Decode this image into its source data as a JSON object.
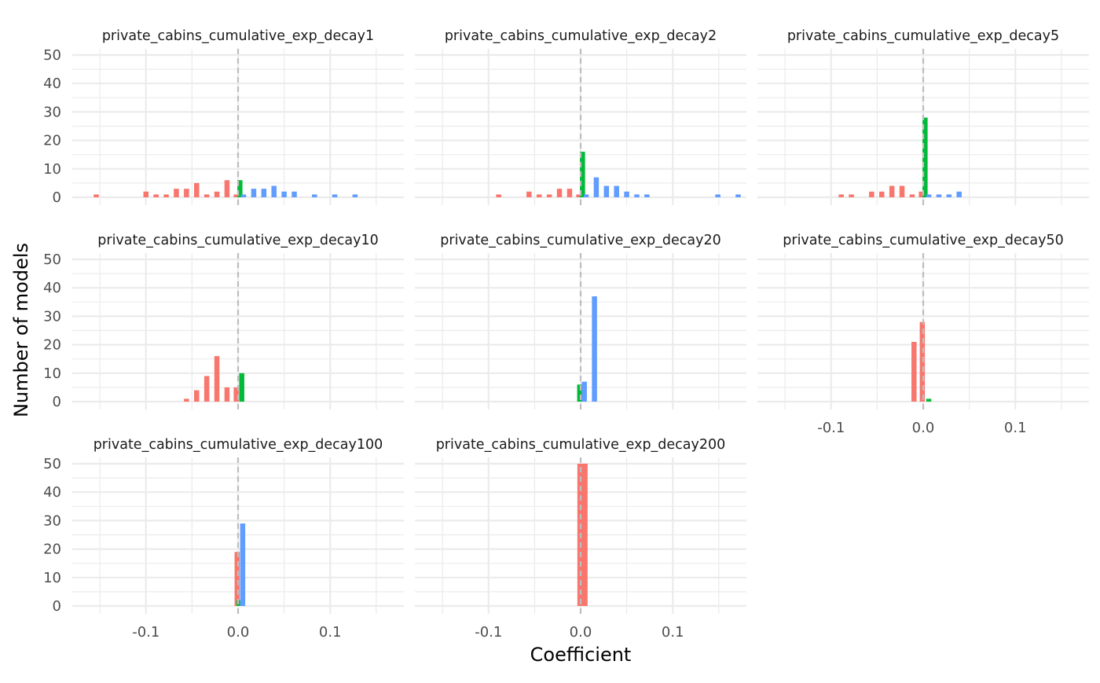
{
  "chart_data": {
    "type": "bar",
    "xlabel": "Coefficient",
    "ylabel": "Number of models",
    "xlim": [
      -0.18,
      0.18
    ],
    "ylim": [
      0,
      50
    ],
    "x_ticks": [
      -0.1,
      0.0,
      0.1
    ],
    "x_tick_labels": [
      "-0.1",
      "0.0",
      "0.1"
    ],
    "y_ticks": [
      0,
      10,
      20,
      30,
      40,
      50
    ],
    "y_tick_labels": [
      "0",
      "10",
      "20",
      "30",
      "40",
      "50"
    ],
    "reference_line_x": 0,
    "grid": true,
    "legend": "none",
    "colors": {
      "negative": "#f8766d",
      "zero": "#00ba38",
      "positive": "#619cff",
      "reference": "#bebebe",
      "grid": "#ebebeb"
    },
    "panels": [
      {
        "title": "private_cabins_cumulative_exp_decay1",
        "bars": [
          {
            "x": -0.154,
            "count": 1,
            "group": "negative"
          },
          {
            "x": -0.1,
            "count": 2,
            "group": "negative"
          },
          {
            "x": -0.089,
            "count": 1,
            "group": "negative"
          },
          {
            "x": -0.078,
            "count": 1,
            "group": "negative"
          },
          {
            "x": -0.067,
            "count": 3,
            "group": "negative"
          },
          {
            "x": -0.056,
            "count": 3,
            "group": "negative"
          },
          {
            "x": -0.045,
            "count": 5,
            "group": "negative"
          },
          {
            "x": -0.034,
            "count": 1,
            "group": "negative"
          },
          {
            "x": -0.023,
            "count": 2,
            "group": "negative"
          },
          {
            "x": -0.012,
            "count": 6,
            "group": "negative"
          },
          {
            "x": -0.002,
            "count": 1,
            "group": "negative"
          },
          {
            "x": 0.002,
            "count": 6,
            "group": "zero"
          },
          {
            "x": 0.006,
            "count": 1,
            "group": "positive"
          },
          {
            "x": 0.017,
            "count": 3,
            "group": "positive"
          },
          {
            "x": 0.028,
            "count": 3,
            "group": "positive"
          },
          {
            "x": 0.039,
            "count": 4,
            "group": "positive"
          },
          {
            "x": 0.05,
            "count": 2,
            "group": "positive"
          },
          {
            "x": 0.061,
            "count": 2,
            "group": "positive"
          },
          {
            "x": 0.083,
            "count": 1,
            "group": "positive"
          },
          {
            "x": 0.105,
            "count": 1,
            "group": "positive"
          },
          {
            "x": 0.127,
            "count": 1,
            "group": "positive"
          }
        ]
      },
      {
        "title": "private_cabins_cumulative_exp_decay2",
        "bars": [
          {
            "x": -0.089,
            "count": 1,
            "group": "negative"
          },
          {
            "x": -0.056,
            "count": 2,
            "group": "negative"
          },
          {
            "x": -0.045,
            "count": 1,
            "group": "negative"
          },
          {
            "x": -0.034,
            "count": 1,
            "group": "negative"
          },
          {
            "x": -0.023,
            "count": 3,
            "group": "negative"
          },
          {
            "x": -0.012,
            "count": 3,
            "group": "negative"
          },
          {
            "x": -0.002,
            "count": 1,
            "group": "negative"
          },
          {
            "x": 0.002,
            "count": 16,
            "group": "zero"
          },
          {
            "x": 0.006,
            "count": 1,
            "group": "positive"
          },
          {
            "x": 0.017,
            "count": 7,
            "group": "positive"
          },
          {
            "x": 0.028,
            "count": 4,
            "group": "positive"
          },
          {
            "x": 0.039,
            "count": 4,
            "group": "positive"
          },
          {
            "x": 0.05,
            "count": 2,
            "group": "positive"
          },
          {
            "x": 0.061,
            "count": 1,
            "group": "positive"
          },
          {
            "x": 0.072,
            "count": 1,
            "group": "positive"
          },
          {
            "x": 0.149,
            "count": 1,
            "group": "positive"
          },
          {
            "x": 0.171,
            "count": 1,
            "group": "positive"
          }
        ]
      },
      {
        "title": "private_cabins_cumulative_exp_decay5",
        "bars": [
          {
            "x": -0.089,
            "count": 1,
            "group": "negative"
          },
          {
            "x": -0.078,
            "count": 1,
            "group": "negative"
          },
          {
            "x": -0.056,
            "count": 2,
            "group": "negative"
          },
          {
            "x": -0.045,
            "count": 2,
            "group": "negative"
          },
          {
            "x": -0.034,
            "count": 4,
            "group": "negative"
          },
          {
            "x": -0.023,
            "count": 4,
            "group": "negative"
          },
          {
            "x": -0.012,
            "count": 1,
            "group": "negative"
          },
          {
            "x": -0.002,
            "count": 2,
            "group": "negative"
          },
          {
            "x": 0.002,
            "count": 28,
            "group": "zero"
          },
          {
            "x": 0.006,
            "count": 1,
            "group": "positive"
          },
          {
            "x": 0.017,
            "count": 1,
            "group": "positive"
          },
          {
            "x": 0.028,
            "count": 1,
            "group": "positive"
          },
          {
            "x": 0.039,
            "count": 2,
            "group": "positive"
          }
        ]
      },
      {
        "title": "private_cabins_cumulative_exp_decay10",
        "bars": [
          {
            "x": -0.056,
            "count": 1,
            "group": "negative"
          },
          {
            "x": -0.045,
            "count": 4,
            "group": "negative"
          },
          {
            "x": -0.034,
            "count": 9,
            "group": "negative"
          },
          {
            "x": -0.023,
            "count": 16,
            "group": "negative"
          },
          {
            "x": -0.012,
            "count": 5,
            "group": "negative"
          },
          {
            "x": -0.002,
            "count": 5,
            "group": "negative"
          },
          {
            "x": 0.004,
            "count": 10,
            "group": "zero"
          }
        ]
      },
      {
        "title": "private_cabins_cumulative_exp_decay20",
        "bars": [
          {
            "x": -0.001,
            "count": 6,
            "group": "zero"
          },
          {
            "x": 0.004,
            "count": 7,
            "group": "positive"
          },
          {
            "x": 0.015,
            "count": 37,
            "group": "positive"
          }
        ]
      },
      {
        "title": "private_cabins_cumulative_exp_decay50",
        "bars": [
          {
            "x": -0.01,
            "count": 21,
            "group": "negative"
          },
          {
            "x": -0.001,
            "count": 28,
            "group": "negative"
          },
          {
            "x": 0.006,
            "count": 1,
            "group": "zero"
          }
        ]
      },
      {
        "title": "private_cabins_cumulative_exp_decay100",
        "bars": [
          {
            "x": -0.001,
            "count": 19,
            "group": "negative"
          },
          {
            "x": 0.001,
            "count": 2,
            "group": "zero"
          },
          {
            "x": 0.005,
            "count": 29,
            "group": "positive"
          }
        ]
      },
      {
        "title": "private_cabins_cumulative_exp_decay200",
        "bars": [
          {
            "x": 0.002,
            "count": 50,
            "group": "negative"
          }
        ]
      }
    ]
  }
}
